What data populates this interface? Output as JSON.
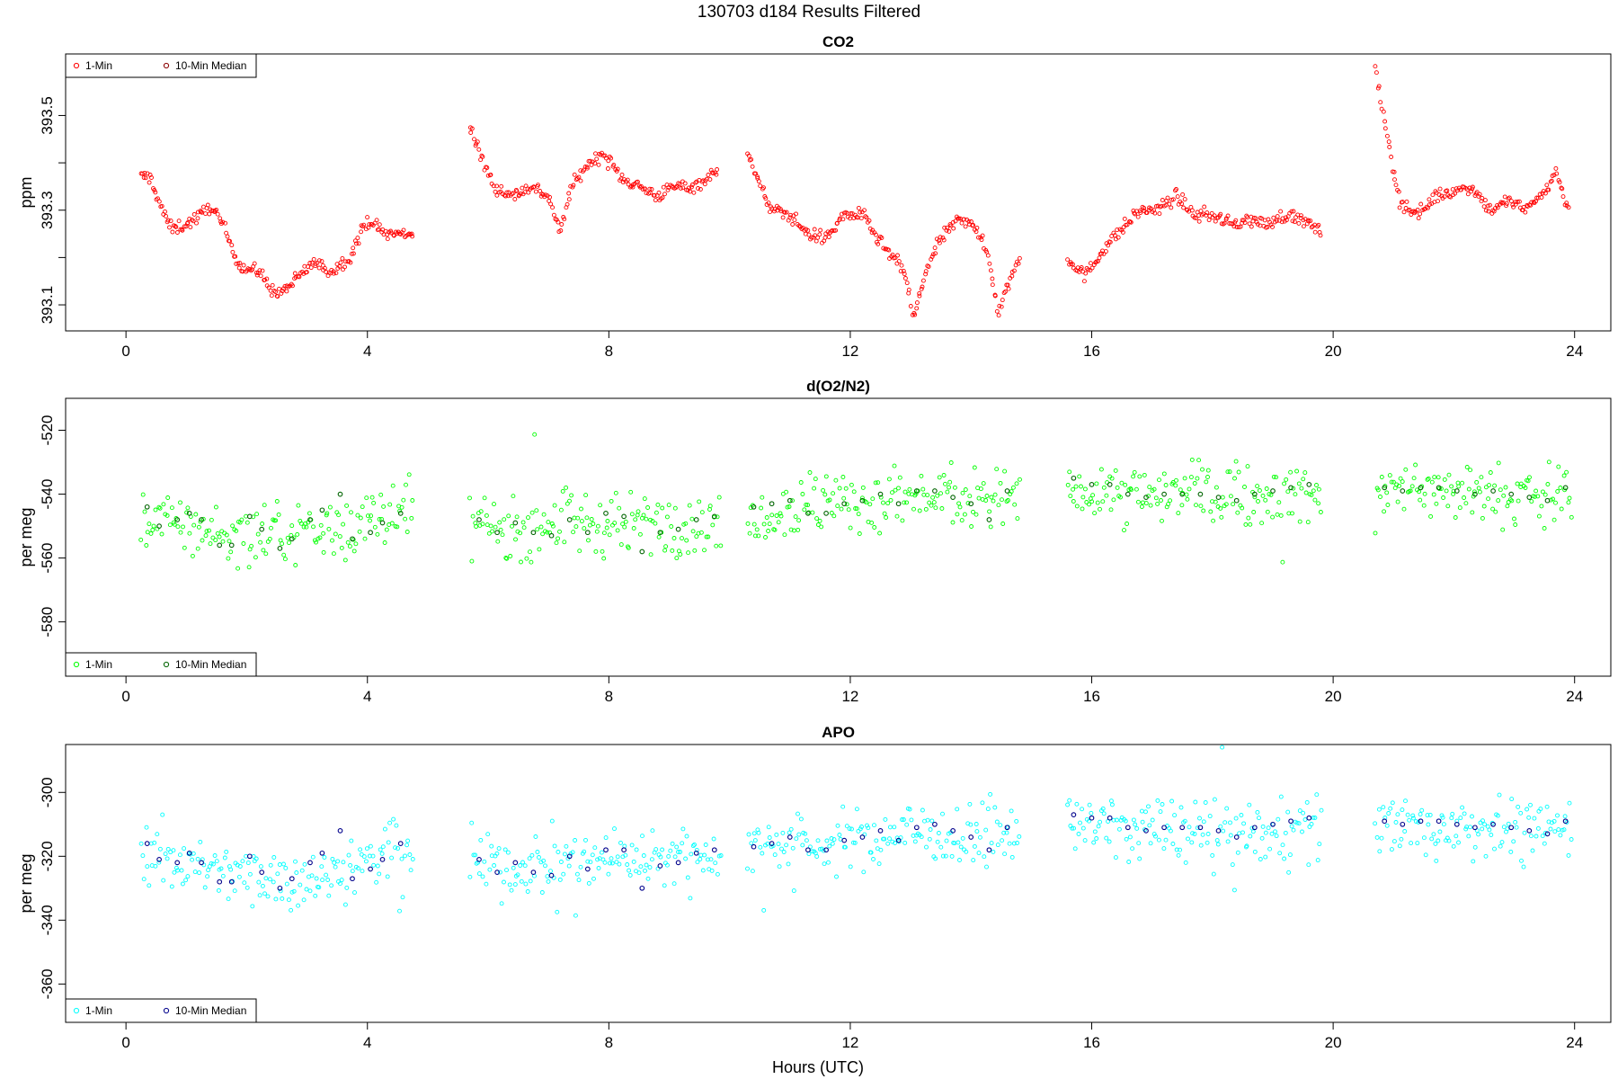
{
  "figure": {
    "title": "130703   d184   Results Filtered",
    "xlabel": "Hours (UTC)"
  },
  "chart_data": [
    {
      "type": "scatter",
      "title": "CO2",
      "ylabel": "ppm",
      "xlim": [
        -1,
        24.6
      ],
      "ylim": [
        393.045,
        393.63
      ],
      "xticks": [
        0,
        4,
        8,
        12,
        16,
        20,
        24
      ],
      "yticks": [
        393.1,
        393.2,
        393.3,
        393.4,
        393.5
      ],
      "ytick_labels": [
        "393.1",
        "",
        "393.3",
        "",
        "393.5"
      ],
      "legend": {
        "position": "top-left",
        "entries": [
          "1-Min",
          "10-Min Median"
        ]
      },
      "point_color": "#ff0000",
      "median_color": "#8b0000",
      "segments": [
        {
          "x": [
            0.25,
            0.4,
            0.6,
            0.75,
            1.0,
            1.25,
            1.4,
            1.6,
            1.9,
            2.2,
            2.5,
            2.8,
            3.1,
            3.4,
            3.7,
            4.0,
            4.3,
            4.75
          ],
          "y": [
            393.37,
            393.37,
            393.3,
            393.26,
            393.27,
            393.29,
            393.31,
            393.27,
            393.18,
            393.17,
            393.12,
            393.15,
            393.19,
            393.17,
            393.2,
            393.28,
            393.25,
            393.25
          ]
        },
        {
          "x": [
            5.7,
            5.85,
            6.1,
            6.4,
            6.7,
            7.0,
            7.2,
            7.35,
            7.6,
            7.9,
            8.2,
            8.5,
            8.8,
            9.1,
            9.4,
            9.8
          ],
          "y": [
            393.48,
            393.42,
            393.35,
            393.33,
            393.35,
            393.33,
            393.25,
            393.34,
            393.39,
            393.42,
            393.37,
            393.35,
            393.33,
            393.35,
            393.35,
            393.38
          ]
        },
        {
          "x": [
            10.3,
            10.5,
            10.7,
            11.0,
            11.3,
            11.6,
            11.9,
            12.2,
            12.5,
            12.7,
            12.9,
            13.05,
            13.25,
            13.5,
            13.8,
            14.0,
            14.3,
            14.45,
            14.6,
            14.8
          ],
          "y": [
            393.43,
            393.35,
            393.3,
            393.29,
            393.25,
            393.24,
            393.29,
            393.29,
            393.23,
            393.2,
            393.17,
            393.07,
            393.17,
            393.24,
            393.28,
            393.28,
            393.2,
            393.08,
            393.14,
            393.2
          ]
        },
        {
          "x": [
            15.6,
            15.9,
            16.2,
            16.5,
            16.8,
            17.1,
            17.4,
            17.7,
            18.0,
            18.3,
            18.6,
            18.9,
            19.2,
            19.5,
            19.8
          ],
          "y": [
            393.2,
            393.16,
            393.22,
            393.26,
            393.3,
            393.3,
            393.33,
            393.29,
            393.29,
            393.27,
            393.28,
            393.27,
            393.29,
            393.28,
            393.25
          ]
        },
        {
          "x": [
            20.7,
            20.8,
            20.95,
            21.1,
            21.4,
            21.7,
            22.0,
            22.3,
            22.6,
            22.9,
            23.2,
            23.5,
            23.7,
            23.9
          ],
          "y": [
            393.61,
            393.52,
            393.42,
            393.32,
            393.29,
            393.33,
            393.34,
            393.35,
            393.3,
            393.32,
            393.3,
            393.34,
            393.38,
            393.3
          ]
        }
      ],
      "medians": []
    },
    {
      "type": "scatter",
      "title": "d(O2/N2)",
      "ylabel": "per meg",
      "xlim": [
        -1,
        24.6
      ],
      "ylim": [
        -597,
        -510
      ],
      "xticks": [
        0,
        4,
        8,
        12,
        16,
        20,
        24
      ],
      "yticks": [
        -520,
        -540,
        -560,
        -580
      ],
      "ytick_labels": [
        "-520",
        "-540",
        "-560",
        "-580"
      ],
      "legend": {
        "position": "bottom-left",
        "entries": [
          "1-Min",
          "10-Min Median"
        ]
      },
      "point_color": "#00ff00",
      "median_color": "#006400",
      "segments": [
        {
          "x": [
            0.25,
            1.0,
            2.0,
            3.0,
            4.0,
            4.75
          ],
          "y": [
            -546,
            -550,
            -554,
            -552,
            -548,
            -545
          ]
        },
        {
          "x": [
            5.7,
            6.5,
            7.5,
            8.5,
            9.5,
            9.85
          ],
          "y": [
            -551,
            -550,
            -550,
            -549,
            -549,
            -548
          ]
        },
        {
          "x": [
            10.3,
            11.0,
            12.0,
            13.0,
            14.0,
            14.8
          ],
          "y": [
            -546,
            -544,
            -543,
            -541,
            -542,
            -541
          ]
        },
        {
          "x": [
            15.6,
            16.5,
            17.5,
            18.5,
            19.8
          ],
          "y": [
            -537,
            -540,
            -540,
            -541,
            -540
          ]
        },
        {
          "x": [
            20.7,
            21.5,
            22.5,
            23.5,
            23.95
          ],
          "y": [
            -539,
            -539,
            -540,
            -541,
            -539
          ]
        }
      ],
      "medians": [
        {
          "x": [
            0.35,
            0.55,
            0.85,
            1.05,
            1.25,
            1.55,
            1.75,
            2.05,
            2.25,
            2.55,
            2.75,
            3.05,
            3.25,
            3.55,
            3.75,
            4.05,
            4.25,
            4.55
          ],
          "y": [
            -544,
            -550,
            -548,
            -546,
            -548,
            -556,
            -556,
            -547,
            -551,
            -557,
            -554,
            -548,
            -545,
            -540,
            -554,
            -552,
            -549,
            -546
          ]
        },
        {
          "x": [
            5.85,
            6.15,
            6.45,
            6.75,
            7.05,
            7.35,
            7.65,
            7.95,
            8.25,
            8.55,
            8.85,
            9.15,
            9.45,
            9.75
          ],
          "y": [
            -548,
            -552,
            -549,
            -552,
            -553,
            -548,
            -552,
            -546,
            -547,
            -558,
            -552,
            -551,
            -548,
            -547
          ]
        },
        {
          "x": [
            10.4,
            10.7,
            11.0,
            11.3,
            11.6,
            11.9,
            12.2,
            12.5,
            12.8,
            13.1,
            13.4,
            13.7,
            14.0,
            14.3,
            14.6
          ],
          "y": [
            -544,
            -543,
            -542,
            -546,
            -546,
            -543,
            -542,
            -540,
            -543,
            -539,
            -539,
            -541,
            -543,
            -548,
            -539
          ]
        },
        {
          "x": [
            15.7,
            16.0,
            16.3,
            16.6,
            16.9,
            17.2,
            17.5,
            17.8,
            18.1,
            18.4,
            18.7,
            19.0,
            19.3,
            19.6
          ],
          "y": [
            -535,
            -537,
            -537,
            -540,
            -541,
            -540,
            -540,
            -540,
            -541,
            -542,
            -540,
            -539,
            -538,
            -537
          ]
        },
        {
          "x": [
            20.85,
            21.15,
            21.45,
            21.75,
            22.05,
            22.35,
            22.65,
            22.95,
            23.25,
            23.55,
            23.85
          ],
          "y": [
            -538,
            -539,
            -538,
            -538,
            -539,
            -540,
            -539,
            -540,
            -541,
            -542,
            -538
          ]
        }
      ]
    },
    {
      "type": "scatter",
      "title": "APO",
      "ylabel": "per meg",
      "xlim": [
        -1,
        24.6
      ],
      "ylim": [
        -372,
        -285
      ],
      "xticks": [
        0,
        4,
        8,
        12,
        16,
        20,
        24
      ],
      "yticks": [
        -300,
        -320,
        -340,
        -360
      ],
      "ytick_labels": [
        "-300",
        "-320",
        "-340",
        "-360"
      ],
      "legend": {
        "position": "bottom-left",
        "entries": [
          "1-Min",
          "10-Min Median"
        ]
      },
      "point_color": "#00ffff",
      "median_color": "#00008b",
      "segments": [
        {
          "x": [
            0.25,
            1.0,
            2.0,
            3.0,
            4.0,
            4.75
          ],
          "y": [
            -318,
            -322,
            -326,
            -326,
            -322,
            -318
          ]
        },
        {
          "x": [
            5.7,
            6.5,
            7.5,
            8.5,
            9.5,
            9.85
          ],
          "y": [
            -324,
            -323,
            -322,
            -320,
            -320,
            -319
          ]
        },
        {
          "x": [
            10.3,
            11.0,
            12.0,
            13.0,
            14.0,
            14.8
          ],
          "y": [
            -317,
            -316,
            -315,
            -312,
            -314,
            -313
          ]
        },
        {
          "x": [
            15.6,
            16.5,
            17.5,
            18.5,
            19.8
          ],
          "y": [
            -309,
            -311,
            -312,
            -313,
            -311
          ]
        },
        {
          "x": [
            20.7,
            21.5,
            22.5,
            23.5,
            23.95
          ],
          "y": [
            -310,
            -311,
            -311,
            -312,
            -310
          ]
        }
      ],
      "medians": [
        {
          "x": [
            0.35,
            0.55,
            0.85,
            1.05,
            1.25,
            1.55,
            1.75,
            2.05,
            2.25,
            2.55,
            2.75,
            3.05,
            3.25,
            3.55,
            3.75,
            4.05,
            4.25,
            4.55
          ],
          "y": [
            -316,
            -321,
            -322,
            -319,
            -322,
            -328,
            -328,
            -320,
            -325,
            -330,
            -327,
            -322,
            -319,
            -312,
            -327,
            -324,
            -321,
            -316
          ]
        },
        {
          "x": [
            5.85,
            6.15,
            6.45,
            6.75,
            7.05,
            7.35,
            7.65,
            7.95,
            8.25,
            8.55,
            8.85,
            9.15,
            9.45,
            9.75
          ],
          "y": [
            -321,
            -325,
            -322,
            -325,
            -326,
            -320,
            -324,
            -318,
            -318,
            -330,
            -323,
            -322,
            -319,
            -318
          ]
        },
        {
          "x": [
            10.4,
            10.7,
            11.0,
            11.3,
            11.6,
            11.9,
            12.2,
            12.5,
            12.8,
            13.1,
            13.4,
            13.7,
            14.0,
            14.3,
            14.6
          ],
          "y": [
            -317,
            -316,
            -314,
            -318,
            -318,
            -315,
            -314,
            -312,
            -315,
            -311,
            -310,
            -312,
            -314,
            -318,
            -311
          ]
        },
        {
          "x": [
            15.7,
            16.0,
            16.3,
            16.6,
            16.9,
            17.2,
            17.5,
            17.8,
            18.1,
            18.4,
            18.7,
            19.0,
            19.3,
            19.6
          ],
          "y": [
            -307,
            -308,
            -308,
            -311,
            -312,
            -311,
            -311,
            -311,
            -312,
            -314,
            -311,
            -310,
            -309,
            -308
          ]
        },
        {
          "x": [
            20.85,
            21.15,
            21.45,
            21.75,
            22.05,
            22.35,
            22.65,
            22.95,
            23.25,
            23.55,
            23.85
          ],
          "y": [
            -309,
            -310,
            -309,
            -309,
            -310,
            -311,
            -310,
            -311,
            -312,
            -313,
            -309
          ]
        }
      ]
    }
  ]
}
